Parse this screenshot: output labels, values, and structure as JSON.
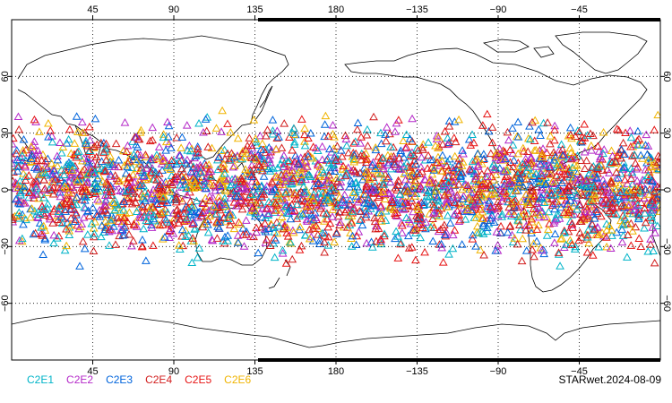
{
  "chart_data": {
    "type": "scatter",
    "projection": "cylindrical-equidistant",
    "center_longitude": 180,
    "xlim": [
      0,
      360
    ],
    "ylim": [
      -90,
      90
    ],
    "grid": "dotted",
    "marker": "triangle-open",
    "lon_ticks": [
      {
        "lon": 45,
        "label": "45"
      },
      {
        "lon": 90,
        "label": "90"
      },
      {
        "lon": 135,
        "label": "135"
      },
      {
        "lon": 180,
        "label": "180"
      },
      {
        "lon": 225,
        "label": "−135"
      },
      {
        "lon": 270,
        "label": "−90"
      },
      {
        "lon": 315,
        "label": "−45"
      }
    ],
    "lat_ticks": [
      {
        "lat": 60,
        "label": "60"
      },
      {
        "lat": 30,
        "label": "30"
      },
      {
        "lat": 0,
        "label": "0"
      },
      {
        "lat": -30,
        "label": "−30"
      },
      {
        "lat": -60,
        "label": "−60"
      }
    ],
    "lat_coverage": [
      -45,
      45
    ],
    "series": [
      {
        "name": "C2E1",
        "color": "#00b4c8"
      },
      {
        "name": "C2E2",
        "color": "#b428c8"
      },
      {
        "name": "C2E3",
        "color": "#0064dc"
      },
      {
        "name": "C2E4",
        "color": "#d21e1e"
      },
      {
        "name": "C2E5",
        "color": "#e61414"
      },
      {
        "name": "C2E6",
        "color": "#f0b400"
      }
    ]
  },
  "footer": {
    "stamp": "STARwet.2024-08-09"
  }
}
